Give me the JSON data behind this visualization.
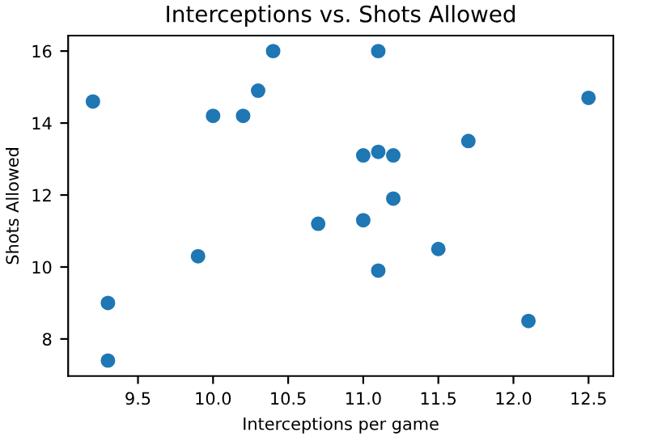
{
  "chart_data": {
    "type": "scatter",
    "title": "Interceptions vs. Shots Allowed",
    "xlabel": "Interceptions per game",
    "ylabel": "Shots Allowed",
    "x": [
      9.2,
      9.3,
      9.3,
      9.9,
      10.0,
      10.2,
      10.3,
      10.4,
      10.7,
      11.0,
      11.0,
      11.1,
      11.1,
      11.1,
      11.2,
      11.2,
      11.5,
      11.7,
      12.1,
      12.5
    ],
    "values": [
      14.6,
      9.0,
      7.4,
      10.3,
      14.2,
      14.2,
      14.9,
      16.0,
      11.2,
      11.3,
      13.1,
      16.0,
      13.2,
      9.9,
      13.1,
      11.9,
      10.5,
      13.5,
      8.5,
      14.7
    ],
    "color": "#1f77b4",
    "marker": "circle",
    "grid": false,
    "legend": false,
    "xlim": [
      9.035,
      12.665
    ],
    "ylim": [
      6.97,
      16.43
    ],
    "xticks": [
      {
        "value": 9.5,
        "label": "9.5"
      },
      {
        "value": 10.0,
        "label": "10.0"
      },
      {
        "value": 10.5,
        "label": "10.5"
      },
      {
        "value": 11.0,
        "label": "11.0"
      },
      {
        "value": 11.5,
        "label": "11.5"
      },
      {
        "value": 12.0,
        "label": "12.0"
      },
      {
        "value": 12.5,
        "label": "12.5"
      }
    ],
    "yticks": [
      8,
      10,
      12,
      14,
      16
    ]
  }
}
